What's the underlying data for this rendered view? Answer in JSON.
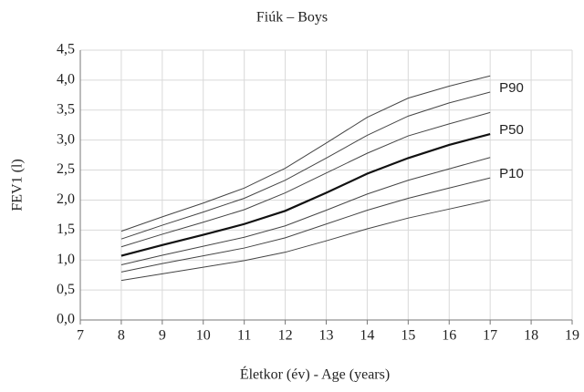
{
  "chart_data": {
    "type": "line",
    "title": "Fiúk – Boys",
    "x_label": "Életkor (év) - Age (years)",
    "y_label": "FEV1 (l)",
    "x": [
      8,
      9,
      10,
      11,
      12,
      13,
      14,
      15,
      16,
      17
    ],
    "series": [
      {
        "color": "#444444",
        "linewidth": 1,
        "values": [
          1.48,
          1.72,
          1.95,
          2.2,
          2.53,
          2.95,
          3.38,
          3.7,
          3.9,
          4.07
        ]
      },
      {
        "name": "P90",
        "color": "#444444",
        "linewidth": 1,
        "values": [
          1.35,
          1.58,
          1.8,
          2.03,
          2.33,
          2.7,
          3.08,
          3.4,
          3.62,
          3.8
        ]
      },
      {
        "color": "#444444",
        "linewidth": 1,
        "values": [
          1.22,
          1.43,
          1.63,
          1.84,
          2.12,
          2.45,
          2.78,
          3.07,
          3.27,
          3.46
        ]
      },
      {
        "name": "P50",
        "color": "#111111",
        "linewidth": 2.2,
        "values": [
          1.07,
          1.25,
          1.42,
          1.6,
          1.82,
          2.12,
          2.44,
          2.7,
          2.92,
          3.1
        ]
      },
      {
        "color": "#444444",
        "linewidth": 1,
        "values": [
          0.92,
          1.08,
          1.23,
          1.38,
          1.57,
          1.83,
          2.1,
          2.33,
          2.52,
          2.71
        ]
      },
      {
        "name": "P10",
        "color": "#444444",
        "linewidth": 1,
        "values": [
          0.8,
          0.94,
          1.07,
          1.2,
          1.37,
          1.6,
          1.83,
          2.03,
          2.2,
          2.37
        ]
      },
      {
        "color": "#444444",
        "linewidth": 1,
        "values": [
          0.66,
          0.77,
          0.88,
          0.99,
          1.13,
          1.32,
          1.52,
          1.7,
          1.85,
          2.0
        ]
      }
    ],
    "xlim": [
      7,
      19
    ],
    "xticks": [
      7,
      8,
      9,
      10,
      11,
      12,
      13,
      14,
      15,
      16,
      17,
      18,
      19
    ],
    "ylim": [
      0,
      4.5
    ],
    "yticks": [
      {
        "value": 0,
        "label": "0,0"
      },
      {
        "value": 0.5,
        "label": "0,5"
      },
      {
        "value": 1,
        "label": "1,0"
      },
      {
        "value": 1.5,
        "label": "1,5"
      },
      {
        "value": 2,
        "label": "2,0"
      },
      {
        "value": 2.5,
        "label": "2,5"
      },
      {
        "value": 3,
        "label": "3,0"
      },
      {
        "value": 3.5,
        "label": "3,5"
      },
      {
        "value": 4,
        "label": "4,0"
      },
      {
        "value": 4.5,
        "label": "4,5"
      }
    ],
    "grid": true
  }
}
